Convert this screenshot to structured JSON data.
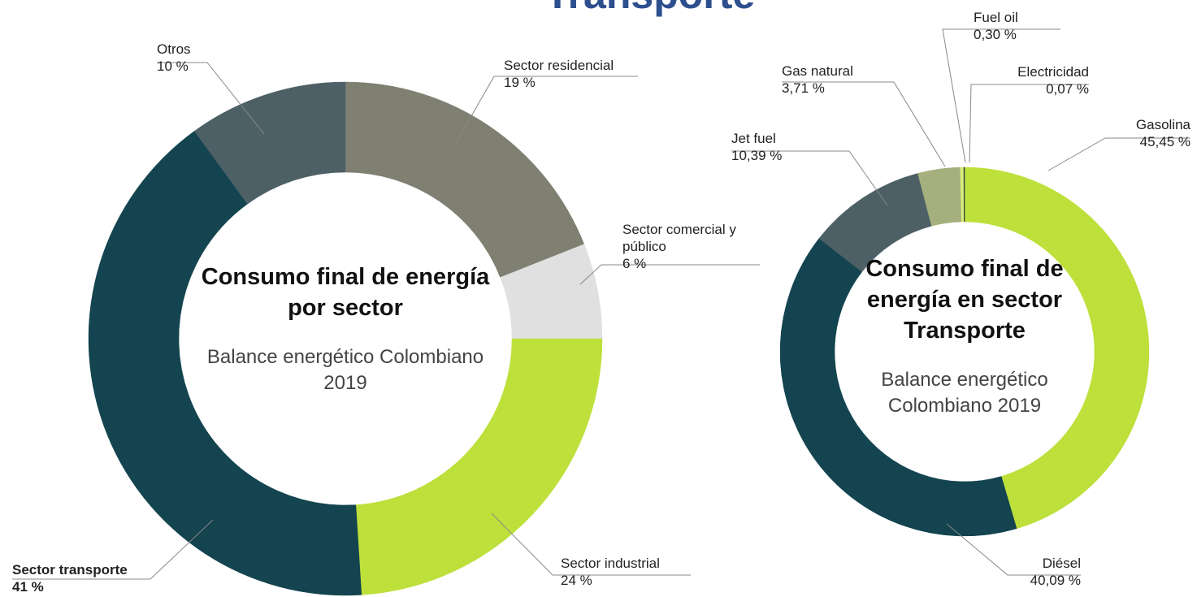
{
  "title": "Transporte",
  "chart_data": [
    {
      "type": "pie",
      "donut": true,
      "center_title": "Consumo final de energía por sector",
      "center_subtitle": "Balance energético Colombiano 2019",
      "categories": [
        "Sector residencial",
        "Sector comercial y público",
        "Sector industrial",
        "Sector transporte",
        "Otros"
      ],
      "values": [
        19,
        6,
        24,
        41,
        10
      ],
      "value_labels": [
        "19 %",
        "6 %",
        "24 %",
        "41 %",
        "10 %"
      ],
      "colors": [
        "#7f7f72",
        "#e0e0e0",
        "#bde03a",
        "#134450",
        "#4d6066"
      ]
    },
    {
      "type": "pie",
      "donut": true,
      "center_title": "Consumo final de energía en sector Transporte",
      "center_subtitle": "Balance energético Colombiano 2019",
      "categories": [
        "Gasolina",
        "Diésel",
        "Jet fuel",
        "Gas natural",
        "Fuel oil",
        "Electricidad"
      ],
      "values": [
        45.45,
        40.09,
        10.39,
        3.71,
        0.3,
        0.07
      ],
      "value_labels": [
        "45,45 %",
        "40,09 %",
        "10,39 %",
        "3,71  %",
        "0,30 %",
        "0,07 %"
      ],
      "colors": [
        "#bde03a",
        "#134450",
        "#4d6066",
        "#a5b07e",
        "#d9ec7a",
        "#2b3d40"
      ]
    }
  ]
}
